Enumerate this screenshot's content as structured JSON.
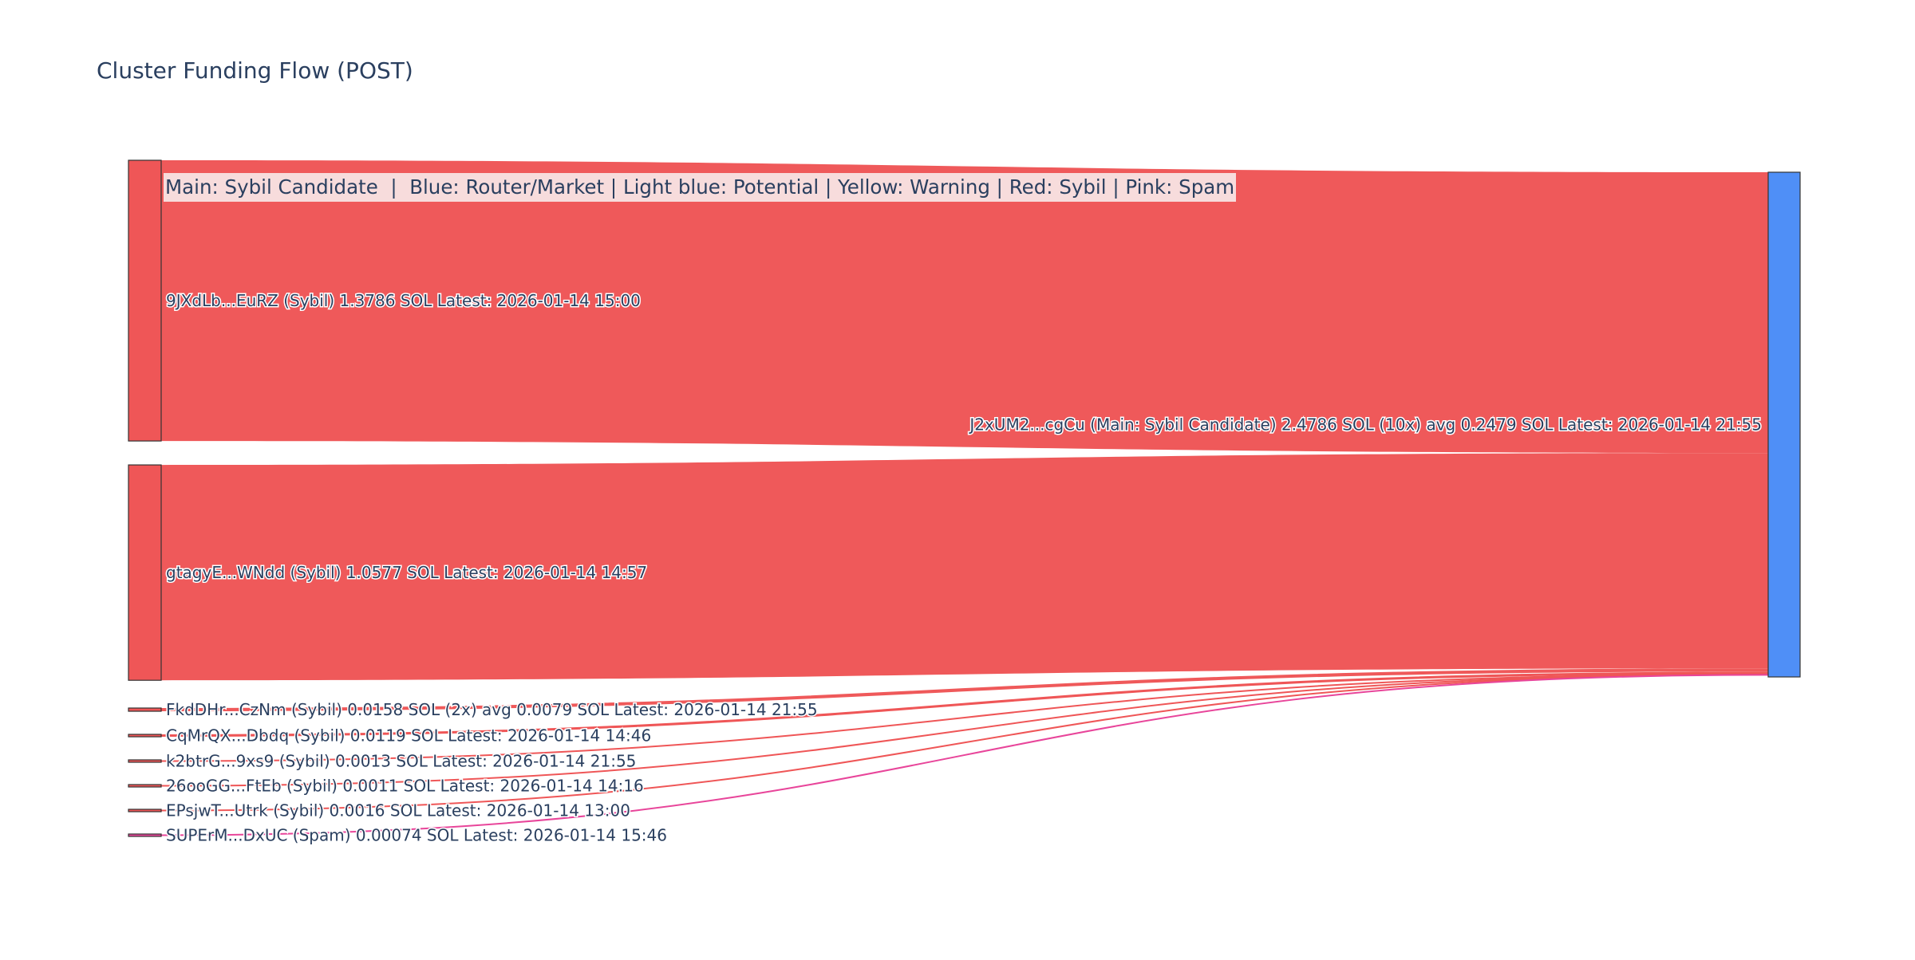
{
  "title": "Cluster Funding Flow (POST)",
  "legend_note": "Main: Sybil Candidate  |  Blue: Router/Market | Light blue: Potential | Yellow: Warning | Red: Sybil | Pink: Spam",
  "colors": {
    "sybil": "#ef5657",
    "spam": "#e8459a",
    "router": "#4f8ff7",
    "node_border": "#333333",
    "text": "#2a3f5f"
  },
  "chart_data": {
    "type": "sankey",
    "target": {
      "id": "J2xUM2",
      "label": "J2xUM2...cgCu (Main: Sybil Candidate) 2.4786 SOL (10x) avg 0.2479 SOL Latest: 2026-01-14 21:55",
      "total": 2.4786,
      "color": "#4f8ff7"
    },
    "sources": [
      {
        "id": "9JXdLb",
        "label": "9JXdLb...EuRZ (Sybil) 1.3786 SOL Latest: 2026-01-14 15:00",
        "value": 1.3786,
        "category": "Sybil",
        "color": "#ef5657"
      },
      {
        "id": "gtagyE",
        "label": "gtagyE...WNdd (Sybil) 1.0577 SOL Latest: 2026-01-14 14:57",
        "value": 1.0577,
        "category": "Sybil",
        "color": "#ef5657"
      },
      {
        "id": "FkdDHr",
        "label": "FkdDHr...CzNm (Sybil) 0.0158 SOL (2x) avg 0.0079 SOL Latest: 2026-01-14 21:55",
        "value": 0.0158,
        "category": "Sybil",
        "color": "#ef5657"
      },
      {
        "id": "CqMrQX",
        "label": "CqMrQX...Dbdq (Sybil) 0.0119 SOL Latest: 2026-01-14 14:46",
        "value": 0.0119,
        "category": "Sybil",
        "color": "#ef5657"
      },
      {
        "id": "k2btrG",
        "label": "k2btrG...9xs9 (Sybil) 0.0013 SOL Latest: 2026-01-14 21:55",
        "value": 0.0013,
        "category": "Sybil",
        "color": "#ef5657"
      },
      {
        "id": "26ooGG",
        "label": "26ooGG...FtEb (Sybil) 0.0011 SOL Latest: 2026-01-14 14:16",
        "value": 0.0011,
        "category": "Sybil",
        "color": "#ef5657"
      },
      {
        "id": "EPsjwT",
        "label": "EPsjwT...Utrk (Sybil) 0.0016 SOL Latest: 2026-01-14 13:00",
        "value": 0.0016,
        "category": "Sybil",
        "color": "#ef5657"
      },
      {
        "id": "SUPErM",
        "label": "SUPErM...DxUC (Spam) 0.00074 SOL Latest: 2026-01-14 15:46",
        "value": 0.00074,
        "category": "Spam",
        "color": "#e8459a"
      }
    ]
  }
}
